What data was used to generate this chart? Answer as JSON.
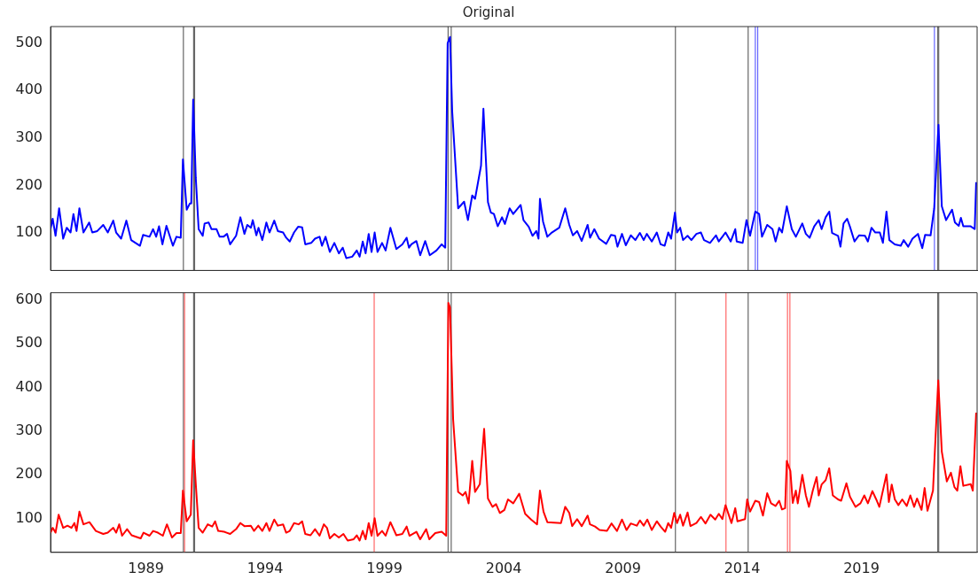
{
  "chart_data": [
    {
      "type": "line",
      "title": "Original",
      "color": "#0000ff",
      "tick_labels": "y",
      "xlim": [
        1985,
        2023.85
      ],
      "xticks": [
        1989,
        1994,
        1999,
        2004,
        2009,
        2014,
        2019
      ],
      "ylim": [
        21,
        535
      ],
      "yticks": [
        100,
        200,
        300,
        400,
        500
      ],
      "x": [
        1985.0,
        1985.09,
        1985.21,
        1985.36,
        1985.53,
        1985.68,
        1985.84,
        1985.96,
        1986.09,
        1986.21,
        1986.38,
        1986.62,
        1986.75,
        1986.96,
        1987.21,
        1987.4,
        1987.63,
        1987.75,
        1987.96,
        1988.18,
        1988.38,
        1988.75,
        1988.88,
        1989.15,
        1989.3,
        1989.43,
        1989.55,
        1989.69,
        1989.86,
        1990.13,
        1990.28,
        1990.46,
        1990.55,
        1990.71,
        1990.84,
        1990.9,
        1990.98,
        1991.09,
        1991.21,
        1991.38,
        1991.46,
        1991.63,
        1991.75,
        1991.96,
        1992.09,
        1992.25,
        1992.4,
        1992.53,
        1992.78,
        1992.96,
        1993.13,
        1993.25,
        1993.4,
        1993.48,
        1993.63,
        1993.72,
        1993.88,
        1994.05,
        1994.18,
        1994.38,
        1994.53,
        1994.75,
        1994.88,
        1995.03,
        1995.21,
        1995.38,
        1995.55,
        1995.68,
        1995.93,
        1996.09,
        1996.28,
        1996.38,
        1996.53,
        1996.71,
        1996.9,
        1997.09,
        1997.25,
        1997.4,
        1997.65,
        1997.84,
        1997.96,
        1998.09,
        1998.21,
        1998.34,
        1998.46,
        1998.59,
        1998.71,
        1998.9,
        1999.05,
        1999.25,
        1999.5,
        1999.75,
        1999.93,
        2000.03,
        2000.13,
        2000.34,
        2000.5,
        2000.71,
        2000.9,
        2001.18,
        2001.4,
        2001.55,
        2001.65,
        2001.75,
        2001.84,
        2002.09,
        2002.34,
        2002.5,
        2002.68,
        2002.8,
        2003.05,
        2003.15,
        2003.34,
        2003.46,
        2003.59,
        2003.75,
        2003.93,
        2004.05,
        2004.25,
        2004.4,
        2004.71,
        2004.83,
        2005.05,
        2005.21,
        2005.37,
        2005.46,
        2005.52,
        2005.65,
        2005.83,
        2006.02,
        2006.33,
        2006.58,
        2006.75,
        2006.9,
        2007.08,
        2007.27,
        2007.52,
        2007.62,
        2007.8,
        2008.0,
        2008.3,
        2008.5,
        2008.67,
        2008.77,
        2008.96,
        2009.12,
        2009.33,
        2009.52,
        2009.71,
        2009.87,
        2010.0,
        2010.21,
        2010.42,
        2010.58,
        2010.75,
        2010.9,
        2011.02,
        2011.18,
        2011.27,
        2011.4,
        2011.52,
        2011.71,
        2011.87,
        2012.08,
        2012.27,
        2012.4,
        2012.65,
        2012.9,
        2013.02,
        2013.17,
        2013.3,
        2013.52,
        2013.71,
        2013.77,
        2014.02,
        2014.18,
        2014.33,
        2014.55,
        2014.71,
        2014.83,
        2015.05,
        2015.27,
        2015.4,
        2015.55,
        2015.67,
        2015.87,
        2016.08,
        2016.25,
        2016.52,
        2016.67,
        2016.83,
        2017.02,
        2017.21,
        2017.33,
        2017.5,
        2017.65,
        2017.77,
        2018.02,
        2018.12,
        2018.25,
        2018.4,
        2018.52,
        2018.71,
        2018.9,
        2019.15,
        2019.27,
        2019.42,
        2019.58,
        2019.77,
        2019.9,
        2020.05,
        2020.17,
        2020.4,
        2020.65,
        2020.77,
        2020.96,
        2021.14,
        2021.37,
        2021.55,
        2021.67,
        2021.9,
        2022.05,
        2022.23,
        2022.37,
        2022.55,
        2022.65,
        2022.8,
        2022.92,
        2023.08,
        2023.17,
        2023.27,
        2023.58,
        2023.75,
        2023.81
      ],
      "values": [
        108,
        130,
        94,
        152,
        88,
        111,
        101,
        140,
        104,
        152,
        101,
        122,
        101,
        104,
        117,
        101,
        126,
        101,
        88,
        126,
        85,
        73,
        96,
        92,
        108,
        92,
        114,
        76,
        115,
        73,
        92,
        90,
        255,
        149,
        162,
        162,
        381,
        216,
        108,
        94,
        120,
        122,
        108,
        108,
        92,
        92,
        98,
        76,
        94,
        133,
        98,
        117,
        111,
        127,
        95,
        111,
        85,
        122,
        101,
        126,
        104,
        101,
        90,
        82,
        101,
        113,
        112,
        76,
        79,
        88,
        92,
        73,
        92,
        60,
        79,
        57,
        69,
        47,
        50,
        63,
        50,
        82,
        57,
        98,
        60,
        101,
        60,
        79,
        63,
        111,
        66,
        76,
        90,
        69,
        76,
        83,
        53,
        83,
        53,
        63,
        76,
        69,
        500,
        513,
        357,
        152,
        166,
        127,
        179,
        172,
        242,
        362,
        165,
        143,
        140,
        114,
        133,
        119,
        152,
        140,
        159,
        127,
        113,
        94,
        104,
        88,
        172,
        124,
        92,
        101,
        111,
        152,
        117,
        95,
        104,
        83,
        117,
        90,
        108,
        88,
        77,
        96,
        94,
        71,
        98,
        74,
        95,
        85,
        100,
        85,
        98,
        82,
        101,
        76,
        73,
        101,
        88,
        143,
        101,
        111,
        85,
        94,
        85,
        98,
        101,
        85,
        79,
        95,
        82,
        92,
        101,
        82,
        108,
        82,
        79,
        127,
        94,
        145,
        140,
        92,
        117,
        108,
        82,
        111,
        101,
        156,
        108,
        92,
        120,
        98,
        90,
        114,
        127,
        108,
        133,
        145,
        100,
        94,
        71,
        120,
        130,
        113,
        82,
        95,
        94,
        82,
        111,
        101,
        101,
        79,
        145,
        85,
        76,
        73,
        85,
        71,
        88,
        98,
        68,
        96,
        95,
        152,
        328,
        156,
        127,
        136,
        149,
        122,
        115,
        132,
        114,
        114,
        108,
        207
      ],
      "ref_lines": [
        {
          "axis": "x",
          "value": 1990.57,
          "color": "#666666"
        },
        {
          "axis": "x",
          "value": 1991.0,
          "color": "#666666"
        },
        {
          "axis": "x",
          "value": 1991.04,
          "color": "#666666"
        },
        {
          "axis": "x",
          "value": 2001.67,
          "color": "#666666"
        },
        {
          "axis": "x",
          "value": 2001.8,
          "color": "#666666"
        },
        {
          "axis": "x",
          "value": 2011.2,
          "color": "#666666"
        },
        {
          "axis": "x",
          "value": 2014.25,
          "color": "#666666"
        },
        {
          "axis": "x",
          "value": 2014.55,
          "color": "#6666ff"
        },
        {
          "axis": "x",
          "value": 2014.65,
          "color": "#6666ff"
        },
        {
          "axis": "x",
          "value": 2022.06,
          "color": "#6666ff"
        },
        {
          "axis": "x",
          "value": 2022.2,
          "color": "#666666"
        },
        {
          "axis": "x",
          "value": 2022.24,
          "color": "#666666"
        }
      ]
    },
    {
      "type": "line",
      "color": "#ff0000",
      "xlim": [
        1985,
        2023.85
      ],
      "xticks": [
        1989,
        1994,
        1999,
        2004,
        2009,
        2014,
        2019
      ],
      "ylim": [
        23,
        616
      ],
      "yticks": [
        100,
        200,
        300,
        400,
        500,
        600
      ],
      "x": [
        1985.0,
        1985.09,
        1985.21,
        1985.34,
        1985.53,
        1985.71,
        1985.88,
        1986.0,
        1986.09,
        1986.21,
        1986.38,
        1986.63,
        1986.9,
        1987.21,
        1987.4,
        1987.63,
        1987.75,
        1987.88,
        1988.0,
        1988.21,
        1988.4,
        1988.78,
        1988.9,
        1989.15,
        1989.3,
        1989.5,
        1989.71,
        1989.88,
        1990.09,
        1990.28,
        1990.46,
        1990.55,
        1990.71,
        1990.88,
        1990.98,
        1991.09,
        1991.21,
        1991.38,
        1991.59,
        1991.78,
        1991.9,
        1992.03,
        1992.28,
        1992.53,
        1992.78,
        1992.96,
        1993.13,
        1993.4,
        1993.53,
        1993.71,
        1993.88,
        1994.05,
        1994.18,
        1994.38,
        1994.53,
        1994.75,
        1994.88,
        1995.03,
        1995.21,
        1995.4,
        1995.55,
        1995.68,
        1995.9,
        1996.09,
        1996.28,
        1996.46,
        1996.59,
        1996.71,
        1996.9,
        1997.09,
        1997.28,
        1997.46,
        1997.71,
        1997.84,
        1997.96,
        1998.09,
        1998.21,
        1998.34,
        1998.46,
        1998.59,
        1998.71,
        1998.9,
        1999.05,
        1999.25,
        1999.5,
        1999.75,
        1999.93,
        2000.05,
        2000.34,
        2000.5,
        2000.75,
        2000.88,
        2001.13,
        2001.4,
        2001.59,
        2001.68,
        2001.75,
        2001.88,
        2002.09,
        2002.28,
        2002.4,
        2002.53,
        2002.68,
        2002.8,
        2003.0,
        2003.18,
        2003.34,
        2003.53,
        2003.68,
        2003.84,
        2004.03,
        2004.18,
        2004.4,
        2004.65,
        2004.9,
        2005.15,
        2005.4,
        2005.52,
        2005.67,
        2005.83,
        2006.4,
        2006.58,
        2006.75,
        2006.87,
        2007.08,
        2007.27,
        2007.52,
        2007.62,
        2007.83,
        2008.02,
        2008.33,
        2008.52,
        2008.75,
        2008.96,
        2009.15,
        2009.33,
        2009.58,
        2009.71,
        2009.87,
        2010.02,
        2010.21,
        2010.42,
        2010.58,
        2010.77,
        2010.9,
        2011.02,
        2011.15,
        2011.27,
        2011.4,
        2011.52,
        2011.71,
        2011.83,
        2012.08,
        2012.27,
        2012.46,
        2012.67,
        2012.87,
        2013.02,
        2013.17,
        2013.3,
        2013.55,
        2013.71,
        2013.8,
        2014.12,
        2014.21,
        2014.33,
        2014.55,
        2014.71,
        2014.87,
        2015.05,
        2015.21,
        2015.4,
        2015.55,
        2015.67,
        2015.8,
        2015.87,
        2016.02,
        2016.12,
        2016.25,
        2016.33,
        2016.52,
        2016.67,
        2016.8,
        2016.96,
        2017.12,
        2017.21,
        2017.33,
        2017.5,
        2017.65,
        2017.8,
        2018.02,
        2018.15,
        2018.37,
        2018.52,
        2018.75,
        2018.96,
        2019.12,
        2019.27,
        2019.46,
        2019.62,
        2019.75,
        2020.05,
        2020.15,
        2020.27,
        2020.4,
        2020.55,
        2020.71,
        2020.9,
        2021.05,
        2021.21,
        2021.33,
        2021.52,
        2021.65,
        2021.77,
        2022.0,
        2022.22,
        2022.37,
        2022.58,
        2022.75,
        2022.9,
        2023.02,
        2023.15,
        2023.27,
        2023.58,
        2023.67,
        2023.81
      ],
      "values": [
        68,
        79,
        68,
        109,
        79,
        84,
        79,
        90,
        72,
        116,
        87,
        92,
        72,
        65,
        68,
        79,
        68,
        87,
        61,
        76,
        62,
        55,
        68,
        61,
        72,
        68,
        61,
        87,
        57,
        67,
        67,
        164,
        94,
        109,
        279,
        179,
        79,
        68,
        87,
        82,
        94,
        72,
        70,
        65,
        76,
        90,
        83,
        84,
        72,
        84,
        72,
        90,
        72,
        98,
        84,
        87,
        68,
        72,
        90,
        87,
        94,
        65,
        62,
        76,
        61,
        87,
        79,
        55,
        65,
        57,
        65,
        50,
        53,
        62,
        50,
        72,
        53,
        90,
        61,
        101,
        61,
        72,
        61,
        92,
        62,
        65,
        82,
        61,
        70,
        53,
        76,
        53,
        67,
        70,
        61,
        593,
        582,
        327,
        161,
        153,
        161,
        135,
        232,
        161,
        179,
        305,
        146,
        127,
        133,
        113,
        120,
        144,
        135,
        157,
        111,
        98,
        87,
        164,
        116,
        92,
        90,
        127,
        113,
        83,
        99,
        83,
        107,
        87,
        82,
        74,
        72,
        89,
        72,
        98,
        74,
        89,
        84,
        96,
        84,
        98,
        74,
        94,
        82,
        70,
        90,
        79,
        113,
        90,
        109,
        84,
        114,
        83,
        90,
        104,
        89,
        109,
        98,
        111,
        99,
        131,
        90,
        124,
        94,
        99,
        144,
        116,
        141,
        138,
        107,
        158,
        135,
        129,
        141,
        121,
        124,
        232,
        209,
        136,
        164,
        135,
        200,
        153,
        127,
        164,
        195,
        153,
        178,
        188,
        215,
        153,
        144,
        141,
        181,
        150,
        127,
        135,
        153,
        135,
        163,
        144,
        127,
        201,
        138,
        178,
        144,
        131,
        144,
        129,
        153,
        127,
        146,
        120,
        170,
        118,
        164,
        416,
        253,
        185,
        205,
        172,
        164,
        220,
        175,
        179,
        164,
        342
      ],
      "ref_lines": [
        {
          "axis": "x",
          "value": 1990.57,
          "color": "#666666"
        },
        {
          "axis": "x",
          "value": 1990.62,
          "color": "#ff6666"
        },
        {
          "axis": "x",
          "value": 1991.0,
          "color": "#666666"
        },
        {
          "axis": "x",
          "value": 1991.04,
          "color": "#666666"
        },
        {
          "axis": "x",
          "value": 1998.57,
          "color": "#ff6666"
        },
        {
          "axis": "x",
          "value": 2001.67,
          "color": "#666666"
        },
        {
          "axis": "x",
          "value": 2001.8,
          "color": "#666666"
        },
        {
          "axis": "x",
          "value": 2011.2,
          "color": "#666666"
        },
        {
          "axis": "x",
          "value": 2013.32,
          "color": "#ff6666"
        },
        {
          "axis": "x",
          "value": 2014.25,
          "color": "#666666"
        },
        {
          "axis": "x",
          "value": 2015.9,
          "color": "#ff6666"
        },
        {
          "axis": "x",
          "value": 2016.0,
          "color": "#ff6666"
        },
        {
          "axis": "x",
          "value": 2022.2,
          "color": "#666666"
        },
        {
          "axis": "x",
          "value": 2022.24,
          "color": "#666666"
        }
      ]
    }
  ]
}
